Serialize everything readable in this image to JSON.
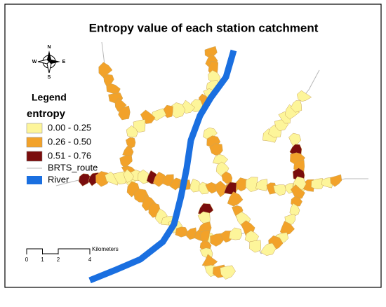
{
  "title": "Entropy value of each station catchment",
  "compass": {
    "north": "N",
    "south": "S",
    "east": "E",
    "west": "W"
  },
  "legend": {
    "title": "Legend",
    "field": "entropy",
    "classes": [
      {
        "label": "0.00 - 0.25",
        "color": "#fdf59a"
      },
      {
        "label": "0.26 - 0.50",
        "color": "#f2a22a"
      },
      {
        "label": "0.51 - 0.76",
        "color": "#7a0d0d"
      }
    ],
    "route": {
      "label": "BRTS_route",
      "color": "#b8b8b8"
    },
    "river": {
      "label": "River",
      "color": "#1a6fe0"
    }
  },
  "scale_bar": {
    "unit": "Kilometers",
    "ticks": [
      0,
      1,
      2,
      4
    ]
  }
}
